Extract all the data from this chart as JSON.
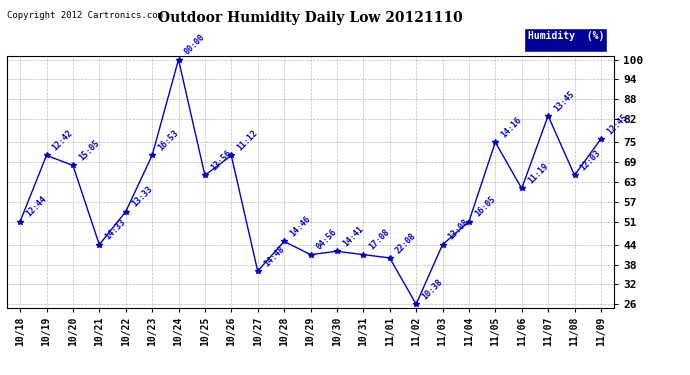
{
  "title": "Outdoor Humidity Daily Low 20121110",
  "copyright": "Copyright 2012 Cartronics.com",
  "legend_label": "Humidity  (%)",
  "x_labels": [
    "10/18",
    "10/19",
    "10/20",
    "10/21",
    "10/22",
    "10/23",
    "10/24",
    "10/25",
    "10/26",
    "10/27",
    "10/28",
    "10/29",
    "10/30",
    "10/31",
    "11/01",
    "11/02",
    "11/03",
    "11/04",
    "11/05",
    "11/06",
    "11/07",
    "11/08",
    "11/09"
  ],
  "x_positions": [
    0,
    1,
    2,
    3,
    4,
    5,
    6,
    7,
    8,
    9,
    10,
    11,
    12,
    13,
    14,
    15,
    16,
    17,
    18,
    19,
    20,
    21,
    22
  ],
  "y_values": [
    51,
    71,
    68,
    44,
    54,
    71,
    100,
    65,
    71,
    36,
    45,
    41,
    42,
    41,
    40,
    26,
    44,
    51,
    75,
    61,
    83,
    65,
    76
  ],
  "point_labels": [
    "12:44",
    "12:42",
    "15:05",
    "14:33",
    "13:33",
    "16:53",
    "00:00",
    "13:56",
    "11:12",
    "14:48",
    "14:46",
    "04:56",
    "14:41",
    "17:08",
    "22:08",
    "10:38",
    "13:08",
    "16:05",
    "14:16",
    "11:19",
    "13:45",
    "12:03",
    "12:45"
  ],
  "ylim_min": 26,
  "ylim_max": 100,
  "yticks": [
    26,
    32,
    38,
    44,
    51,
    57,
    63,
    69,
    75,
    82,
    88,
    94,
    100
  ],
  "line_color": "#0000cc",
  "marker": "*",
  "bg_color": "#ffffff",
  "grid_color": "#bbbbbb",
  "title_color": "#000000",
  "label_color": "#0000cc",
  "legend_bg": "#000099",
  "legend_fg": "#ffffff",
  "fig_width": 6.9,
  "fig_height": 3.75,
  "dpi": 100
}
